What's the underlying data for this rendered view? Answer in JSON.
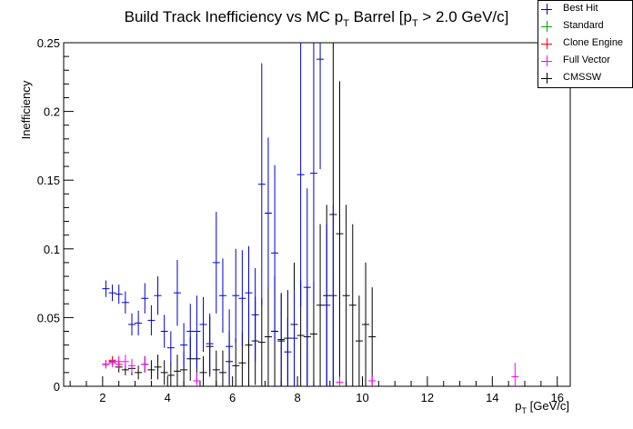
{
  "chart_data": {
    "type": "scatter",
    "title_main": "Build Track Inefficiency vs MC p",
    "title_sub": "T",
    "title_mid": " Barrel [p",
    "title_sub2": "T",
    "title_end": " > 2.0 GeV/c]",
    "ylabel": "Inefficiency",
    "xlabel_main": "p",
    "xlabel_sub": "T",
    "xlabel_end": " [GeV/c]",
    "xlim": [
      0.8,
      16.4
    ],
    "ylim": [
      0,
      0.25
    ],
    "xticks": [
      2,
      4,
      6,
      8,
      10,
      12,
      14,
      16
    ],
    "xtick_labels": [
      "2",
      "4",
      "6",
      "8",
      "10",
      "12",
      "14",
      "16"
    ],
    "yticks": [
      0,
      0.05,
      0.1,
      0.15,
      0.2,
      0.25
    ],
    "ytick_labels": [
      "0",
      "0.05",
      "0.1",
      "0.15",
      "0.2",
      "0.25"
    ],
    "legend_position": "top-right",
    "series": [
      {
        "name": "Best Hit",
        "color": "#0000cc",
        "points": [
          {
            "x": 2.1,
            "y": 0.071,
            "err": 0.006
          },
          {
            "x": 2.3,
            "y": 0.068,
            "err": 0.006
          },
          {
            "x": 2.5,
            "y": 0.067,
            "err": 0.007
          },
          {
            "x": 2.7,
            "y": 0.061,
            "err": 0.008
          },
          {
            "x": 2.9,
            "y": 0.045,
            "err": 0.008
          },
          {
            "x": 3.1,
            "y": 0.046,
            "err": 0.009
          },
          {
            "x": 3.3,
            "y": 0.064,
            "err": 0.011
          },
          {
            "x": 3.5,
            "y": 0.048,
            "err": 0.011
          },
          {
            "x": 3.7,
            "y": 0.066,
            "err": 0.014
          },
          {
            "x": 3.9,
            "y": 0.04,
            "err": 0.012
          },
          {
            "x": 4.1,
            "y": 0.028,
            "err": 0.012
          },
          {
            "x": 4.3,
            "y": 0.068,
            "err": 0.024
          },
          {
            "x": 4.5,
            "y": 0.03,
            "err": 0.016
          },
          {
            "x": 4.7,
            "y": 0.04,
            "err": 0.02
          },
          {
            "x": 4.9,
            "y": 0.04,
            "err": 0.026
          },
          {
            "x": 5.1,
            "y": 0.045,
            "err": 0.02
          },
          {
            "x": 5.3,
            "y": 0.031,
            "err": 0.022
          },
          {
            "x": 5.5,
            "y": 0.09,
            "err": 0.037
          },
          {
            "x": 5.7,
            "y": 0.066,
            "err": 0.027
          },
          {
            "x": 5.9,
            "y": 0.029,
            "err": 0.027
          },
          {
            "x": 6.1,
            "y": 0.066,
            "err": 0.034
          },
          {
            "x": 6.3,
            "y": 0.064,
            "err": 0.035
          },
          {
            "x": 6.5,
            "y": 0.068,
            "err": 0.034
          },
          {
            "x": 6.7,
            "y": 0.052,
            "err": 0.034
          },
          {
            "x": 6.9,
            "y": 0.147,
            "err": 0.088
          },
          {
            "x": 7.1,
            "y": 0.126,
            "err": 0.055
          },
          {
            "x": 7.3,
            "y": 0.097,
            "err": 0.064
          },
          {
            "x": 7.5,
            "y": 0.034,
            "err": 0.034
          },
          {
            "x": 7.7,
            "y": 0.025,
            "err": 0.025
          },
          {
            "x": 7.9,
            "y": 0.035,
            "err": 0.035
          },
          {
            "x": 8.1,
            "y": 0.154,
            "err": 0.096
          },
          {
            "x": 8.3,
            "y": 0.072,
            "err": 0.072
          },
          {
            "x": 8.5,
            "y": 0.155,
            "err": 0.095
          },
          {
            "x": 8.7,
            "y": 0.238,
            "err": 0.08
          },
          {
            "x": 8.9,
            "y": 0.059,
            "err": 0.059
          },
          {
            "x": 9.1,
            "y": 0.066,
            "err": 0.066
          }
        ]
      },
      {
        "name": "Standard",
        "color": "#00aa00",
        "points": []
      },
      {
        "name": "Clone Engine",
        "color": "#ff0000",
        "points": [
          {
            "x": 2.1,
            "y": 0.016,
            "err": 0.003
          },
          {
            "x": 2.3,
            "y": 0.019,
            "err": 0.003
          },
          {
            "x": 2.5,
            "y": 0.016,
            "err": 0.003
          }
        ]
      },
      {
        "name": "Full Vector",
        "color": "#ff00ff",
        "points": [
          {
            "x": 2.1,
            "y": 0.016,
            "err": 0.003
          },
          {
            "x": 2.3,
            "y": 0.017,
            "err": 0.003
          },
          {
            "x": 2.5,
            "y": 0.018,
            "err": 0.004
          },
          {
            "x": 2.7,
            "y": 0.018,
            "err": 0.005
          },
          {
            "x": 2.9,
            "y": 0.015,
            "err": 0.005
          },
          {
            "x": 3.3,
            "y": 0.016,
            "err": 0.006
          },
          {
            "x": 4.9,
            "y": 0.004,
            "err": 0.006
          },
          {
            "x": 9.3,
            "y": 0.003,
            "err": 0.004
          },
          {
            "x": 10.3,
            "y": 0.004,
            "err": 0.004
          },
          {
            "x": 14.7,
            "y": 0.007,
            "err": 0.01
          }
        ]
      },
      {
        "name": "CMSSW",
        "color": "#000000",
        "points": [
          {
            "x": 2.1,
            "y": 0.016,
            "err": 0.003
          },
          {
            "x": 2.3,
            "y": 0.018,
            "err": 0.003
          },
          {
            "x": 2.5,
            "y": 0.014,
            "err": 0.004
          },
          {
            "x": 2.7,
            "y": 0.012,
            "err": 0.004
          },
          {
            "x": 2.9,
            "y": 0.013,
            "err": 0.005
          },
          {
            "x": 3.1,
            "y": 0.01,
            "err": 0.005
          },
          {
            "x": 3.3,
            "y": 0.016,
            "err": 0.006
          },
          {
            "x": 3.5,
            "y": 0.012,
            "err": 0.007
          },
          {
            "x": 3.7,
            "y": 0.014,
            "err": 0.009
          },
          {
            "x": 3.9,
            "y": 0.01,
            "err": 0.009
          },
          {
            "x": 4.1,
            "y": 0.008,
            "err": 0.009
          },
          {
            "x": 4.3,
            "y": 0.011,
            "err": 0.012
          },
          {
            "x": 4.5,
            "y": 0.012,
            "err": 0.013
          },
          {
            "x": 4.7,
            "y": 0.02,
            "err": 0.016
          },
          {
            "x": 4.9,
            "y": 0.02,
            "err": 0.018
          },
          {
            "x": 5.1,
            "y": 0.01,
            "err": 0.012
          },
          {
            "x": 5.3,
            "y": 0.029,
            "err": 0.022
          },
          {
            "x": 5.5,
            "y": 0.012,
            "err": 0.014
          },
          {
            "x": 5.7,
            "y": 0.01,
            "err": 0.016
          },
          {
            "x": 5.9,
            "y": 0.018,
            "err": 0.022
          },
          {
            "x": 6.1,
            "y": 0.015,
            "err": 0.02
          },
          {
            "x": 6.3,
            "y": 0.017,
            "err": 0.022
          },
          {
            "x": 6.5,
            "y": 0.03,
            "err": 0.03
          },
          {
            "x": 6.7,
            "y": 0.033,
            "err": 0.032
          },
          {
            "x": 6.9,
            "y": 0.032,
            "err": 0.032
          },
          {
            "x": 7.1,
            "y": 0.036,
            "err": 0.036
          },
          {
            "x": 7.3,
            "y": 0.04,
            "err": 0.04
          },
          {
            "x": 7.5,
            "y": 0.033,
            "err": 0.034
          },
          {
            "x": 7.7,
            "y": 0.035,
            "err": 0.035
          },
          {
            "x": 7.9,
            "y": 0.045,
            "err": 0.045
          },
          {
            "x": 8.1,
            "y": 0.037,
            "err": 0.04
          },
          {
            "x": 8.3,
            "y": 0.036,
            "err": 0.036
          },
          {
            "x": 8.5,
            "y": 0.038,
            "err": 0.038
          },
          {
            "x": 8.7,
            "y": 0.059,
            "err": 0.059
          },
          {
            "x": 8.9,
            "y": 0.066,
            "err": 0.066
          },
          {
            "x": 9.1,
            "y": 0.125,
            "err": 0.125
          },
          {
            "x": 9.3,
            "y": 0.111,
            "err": 0.111
          },
          {
            "x": 9.5,
            "y": 0.066,
            "err": 0.066
          },
          {
            "x": 9.7,
            "y": 0.059,
            "err": 0.059
          },
          {
            "x": 9.9,
            "y": 0.033,
            "err": 0.033
          },
          {
            "x": 10.1,
            "y": 0.045,
            "err": 0.045
          },
          {
            "x": 10.3,
            "y": 0.036,
            "err": 0.036
          }
        ]
      }
    ]
  }
}
